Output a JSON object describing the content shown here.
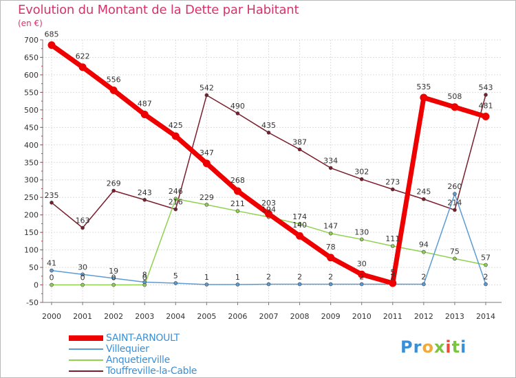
{
  "title": "Evolution du Montant de la Dette par Habitant",
  "unit": "(en €)",
  "logo": {
    "text": "Proxiti",
    "colors": [
      "#3a8fd6",
      "#f2a93b",
      "#7cc243",
      "#e74c3c"
    ]
  },
  "chart_data": {
    "type": "line",
    "title": "Evolution du Montant de la Dette par Habitant",
    "ylabel": "(en €)",
    "xlabel": "",
    "ylim": [
      -50,
      700
    ],
    "yticks": [
      -50,
      0,
      50,
      100,
      150,
      200,
      250,
      300,
      350,
      400,
      450,
      500,
      550,
      600,
      650,
      700
    ],
    "categories": [
      "2000",
      "2001",
      "2002",
      "2003",
      "2004",
      "2005",
      "2006",
      "2007",
      "2008",
      "2009",
      "2010",
      "2011",
      "2012",
      "2013",
      "2014"
    ],
    "grid": true,
    "legend": "bottom-left",
    "series": [
      {
        "name": "Touffreville-la-Cable",
        "color": "#7a1c2a",
        "width": 1.5,
        "marker": 5,
        "values": [
          235,
          163,
          269,
          243,
          216,
          542,
          490,
          435,
          387,
          334,
          302,
          273,
          245,
          214,
          543
        ]
      },
      {
        "name": "Anquetierville",
        "color": "#8fd14f",
        "width": 1.5,
        "marker": 5,
        "values": [
          0,
          0,
          0,
          0,
          246,
          229,
          211,
          194,
          174,
          147,
          130,
          111,
          94,
          75,
          57
        ]
      },
      {
        "name": "Villequier",
        "color": "#5b9bd5",
        "width": 1.5,
        "marker": 5,
        "values": [
          41,
          30,
          19,
          8,
          5,
          1,
          1,
          2,
          2,
          2,
          2,
          2,
          2,
          260,
          2
        ]
      },
      {
        "name": "SAINT-ARNOULT",
        "color": "#ee0000",
        "width": 7,
        "marker": 11,
        "values": [
          685,
          622,
          556,
          487,
          425,
          347,
          268,
          203,
          140,
          78,
          30,
          5,
          535,
          508,
          481
        ]
      }
    ],
    "data_labels": [
      {
        "series": "SAINT-ARNOULT",
        "values": [
          "685",
          "622",
          "556",
          "487",
          "425",
          "347",
          "268",
          "203",
          "140",
          "78",
          "30",
          "5",
          "535",
          "508",
          "481"
        ]
      },
      {
        "series": "Villequier",
        "values": [
          "41",
          "30",
          "19",
          "8",
          "5",
          "1",
          "1",
          "2",
          "2",
          "2",
          "2",
          "2",
          "2",
          "260",
          "2"
        ]
      },
      {
        "series": "Anquetierville",
        "values": [
          "0",
          "0",
          "0",
          "0",
          "246",
          "229",
          "211",
          "194",
          "174",
          "147",
          "130",
          "111",
          "94",
          "75",
          "57"
        ]
      },
      {
        "series": "Touffreville-la-Cable",
        "values": [
          "235",
          "163",
          "269",
          "243",
          "216",
          "542",
          "490",
          "435",
          "387",
          "334",
          "302",
          "273",
          "245",
          "214",
          "543"
        ]
      }
    ]
  },
  "legend": [
    {
      "label": "SAINT-ARNOULT",
      "color": "#ee0000",
      "thick": true
    },
    {
      "label": "Villequier",
      "color": "#5b9bd5",
      "thick": false
    },
    {
      "label": "Anquetierville",
      "color": "#8fd14f",
      "thick": false
    },
    {
      "label": "Touffreville-la-Cable",
      "color": "#7a1c2a",
      "thick": false
    }
  ]
}
